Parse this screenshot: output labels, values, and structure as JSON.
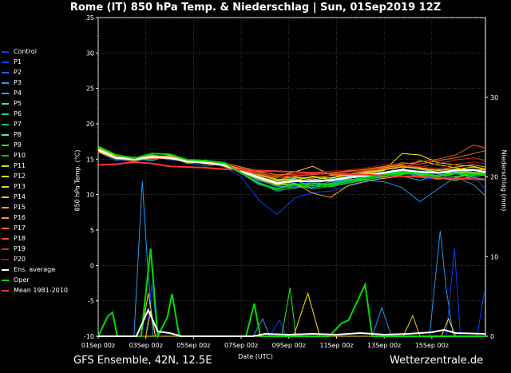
{
  "title": "Rome  (IT)  850 hPa Temp. & Niederschlag | Sun, 01Sep2019 12Z",
  "footer": {
    "left": "GFS Ensemble, 42N, 12.5E",
    "right": "Wetterzentrale.de"
  },
  "chart_data": {
    "type": "line",
    "xlabel": "Date (UTC)",
    "ylabel": "850 hPa Temp. (°C)",
    "ylabel_right": "Niederschlag (mm)",
    "ylim": [
      -10,
      35
    ],
    "ylim_right": [
      0,
      40
    ],
    "x_ticks": [
      "01Sep 00z",
      "03Sep 00z",
      "05Sep 00z",
      "07Sep 00z",
      "09Sep 00z",
      "11Sep 00z",
      "13Sep 00z",
      "15Sep 00z"
    ],
    "x_tick_days": [
      0,
      2,
      4,
      6,
      8,
      10,
      12,
      14
    ],
    "x_range_days": [
      0,
      16.25
    ],
    "y_ticks_left": [
      -10,
      -5,
      0,
      5,
      10,
      15,
      20,
      25,
      30,
      35
    ],
    "y_ticks_right": [
      0,
      10,
      20,
      30
    ],
    "grid": true,
    "temperature_series": [
      {
        "name": "Control",
        "color": "#2233cc",
        "values": [
          16.5,
          15.2,
          14.8,
          15.0,
          15.3,
          14.6,
          14.8,
          14.2,
          13.8,
          12.2,
          11.0,
          11.5,
          11.8,
          11.3,
          11.6,
          12.0,
          12.4,
          12.9,
          13.0,
          13.2,
          13.4,
          13.0,
          12.8
        ]
      },
      {
        "name": "P1",
        "color": "#0044ff",
        "values": [
          16.2,
          15.0,
          14.6,
          15.4,
          14.9,
          14.8,
          14.4,
          14.0,
          12.5,
          9.2,
          7.2,
          9.5,
          10.3,
          10.5,
          11.2,
          11.8,
          12.8,
          13.4,
          12.4,
          12.2,
          13.0,
          12.6,
          10.8
        ]
      },
      {
        "name": "P2",
        "color": "#1166ee",
        "values": [
          16.0,
          14.8,
          15.2,
          15.1,
          15.3,
          14.5,
          14.0,
          14.4,
          13.4,
          11.8,
          10.4,
          11.2,
          11.0,
          11.5,
          12.0,
          12.5,
          13.0,
          14.0,
          13.5,
          13.2,
          12.9,
          13.1,
          13.0
        ]
      },
      {
        "name": "P3",
        "color": "#2299ee",
        "values": [
          16.4,
          15.4,
          15.0,
          15.5,
          15.2,
          14.8,
          14.6,
          14.2,
          13.0,
          11.4,
          10.8,
          11.6,
          11.2,
          11.8,
          12.2,
          12.0,
          11.8,
          11.0,
          9.0,
          10.8,
          12.5,
          11.4,
          9.8
        ]
      },
      {
        "name": "P4",
        "color": "#22aadd",
        "values": [
          16.3,
          15.1,
          14.9,
          15.6,
          15.0,
          14.9,
          14.3,
          14.5,
          13.2,
          12.0,
          11.2,
          11.0,
          11.4,
          12.2,
          12.5,
          12.8,
          13.2,
          12.6,
          12.0,
          12.8,
          13.0,
          12.4,
          12.2
        ]
      },
      {
        "name": "P5",
        "color": "#33dddd",
        "values": [
          16.1,
          15.3,
          15.1,
          14.8,
          15.5,
          14.6,
          14.7,
          14.1,
          13.6,
          12.4,
          11.6,
          11.8,
          12.0,
          11.9,
          12.3,
          12.6,
          12.7,
          13.1,
          12.9,
          12.5,
          13.2,
          13.0,
          12.7
        ]
      },
      {
        "name": "P6",
        "color": "#22ccaa",
        "values": [
          16.6,
          15.2,
          14.7,
          15.3,
          15.4,
          14.7,
          14.5,
          14.6,
          13.5,
          12.6,
          11.8,
          12.0,
          11.2,
          11.6,
          12.1,
          12.4,
          12.9,
          13.3,
          13.1,
          12.7,
          12.6,
          12.9,
          13.4
        ]
      },
      {
        "name": "P7",
        "color": "#22bb88",
        "values": [
          16.2,
          15.0,
          15.0,
          15.2,
          15.1,
          14.9,
          14.4,
          14.3,
          13.4,
          12.2,
          11.5,
          11.3,
          10.8,
          11.2,
          11.7,
          12.2,
          12.6,
          13.0,
          12.8,
          12.3,
          12.1,
          12.5,
          12.8
        ]
      },
      {
        "name": "P8",
        "color": "#55ee99",
        "values": [
          16.5,
          15.5,
          15.3,
          15.0,
          15.6,
          14.6,
          14.9,
          14.0,
          13.7,
          12.8,
          12.0,
          12.3,
          12.5,
          12.1,
          12.6,
          12.9,
          13.1,
          13.5,
          13.3,
          13.0,
          13.1,
          13.4,
          13.6
        ]
      },
      {
        "name": "P9",
        "color": "#22ee22",
        "values": [
          16.0,
          15.4,
          15.0,
          15.6,
          15.3,
          14.4,
          14.7,
          14.4,
          13.3,
          12.3,
          11.3,
          11.4,
          11.0,
          11.4,
          11.9,
          12.2,
          12.5,
          12.8,
          13.3,
          12.4,
          12.0,
          12.7,
          13.1
        ]
      },
      {
        "name": "P10",
        "color": "#00cc00",
        "values": [
          16.3,
          15.1,
          14.8,
          15.2,
          15.2,
          14.5,
          14.6,
          14.1,
          13.1,
          11.6,
          10.6,
          10.9,
          11.3,
          11.1,
          11.6,
          12.1,
          12.7,
          12.9,
          13.0,
          13.6,
          13.5,
          12.8,
          13.0
        ]
      },
      {
        "name": "P11",
        "color": "#ccee00",
        "values": [
          16.4,
          15.3,
          15.2,
          15.4,
          15.0,
          14.8,
          14.5,
          14.3,
          13.9,
          13.2,
          12.5,
          12.4,
          12.1,
          12.4,
          12.9,
          13.3,
          13.8,
          14.2,
          13.6,
          13.2,
          13.0,
          13.2,
          12.9
        ]
      },
      {
        "name": "P12",
        "color": "#ffee00",
        "values": [
          16.1,
          15.0,
          15.1,
          15.0,
          15.4,
          14.7,
          14.8,
          14.2,
          13.8,
          12.9,
          12.2,
          12.0,
          12.6,
          12.3,
          12.8,
          13.0,
          13.4,
          15.8,
          15.6,
          14.5,
          14.2,
          14.0,
          13.6
        ]
      },
      {
        "name": "P13",
        "color": "#eedd22",
        "values": [
          16.2,
          15.2,
          14.9,
          15.3,
          15.1,
          14.6,
          14.6,
          14.4,
          13.6,
          13.0,
          12.6,
          13.2,
          14.0,
          12.8,
          12.7,
          13.1,
          13.5,
          13.9,
          13.7,
          13.4,
          13.6,
          13.9,
          13.5
        ]
      },
      {
        "name": "P14",
        "color": "#ffcc00",
        "values": [
          16.6,
          15.4,
          15.0,
          15.5,
          15.3,
          14.8,
          14.3,
          14.2,
          13.5,
          12.5,
          11.9,
          12.2,
          11.8,
          12.0,
          12.4,
          12.8,
          13.0,
          13.6,
          14.8,
          14.2,
          13.8,
          13.4,
          13.2
        ]
      },
      {
        "name": "P15",
        "color": "#ffaa00",
        "values": [
          16.0,
          15.1,
          15.2,
          15.1,
          15.2,
          14.5,
          14.7,
          14.0,
          13.2,
          12.1,
          11.4,
          11.6,
          10.2,
          9.6,
          11.3,
          11.9,
          12.3,
          12.6,
          12.7,
          12.2,
          12.4,
          12.9,
          13.1
        ]
      },
      {
        "name": "P16",
        "color": "#ff9922",
        "values": [
          16.3,
          15.3,
          15.1,
          15.4,
          15.5,
          14.9,
          14.6,
          14.3,
          13.7,
          12.7,
          12.1,
          12.5,
          12.3,
          12.7,
          12.9,
          13.2,
          13.6,
          14.0,
          13.8,
          13.5,
          13.9,
          14.2,
          13.9
        ]
      },
      {
        "name": "P17",
        "color": "#ee7722",
        "values": [
          16.5,
          15.0,
          14.8,
          15.2,
          15.0,
          14.7,
          14.5,
          14.5,
          13.9,
          13.3,
          12.8,
          12.9,
          13.0,
          13.1,
          13.3,
          13.6,
          14.0,
          14.5,
          14.3,
          14.8,
          15.2,
          15.8,
          16.2
        ]
      },
      {
        "name": "P18",
        "color": "#ee5522",
        "values": [
          16.2,
          15.2,
          15.0,
          15.3,
          15.4,
          14.6,
          14.4,
          14.1,
          13.6,
          13.0,
          12.7,
          12.6,
          12.8,
          13.0,
          13.4,
          13.5,
          13.9,
          14.3,
          14.6,
          15.0,
          15.6,
          17.0,
          16.6
        ]
      },
      {
        "name": "P19",
        "color": "#cc3322",
        "values": [
          16.1,
          15.4,
          15.3,
          15.0,
          15.2,
          14.8,
          14.7,
          14.2,
          13.4,
          12.9,
          12.4,
          12.7,
          12.9,
          12.9,
          13.2,
          13.4,
          13.7,
          14.1,
          13.9,
          14.4,
          14.9,
          15.2,
          14.8
        ]
      },
      {
        "name": "P20",
        "color": "#aa1111",
        "values": [
          16.4,
          15.1,
          14.9,
          15.4,
          15.1,
          14.9,
          14.8,
          14.4,
          13.8,
          13.1,
          12.6,
          12.8,
          13.1,
          13.3,
          13.5,
          13.8,
          14.2,
          14.4,
          14.0,
          13.7,
          14.3,
          14.6,
          14.4
        ]
      },
      {
        "name": "Ens. average",
        "color": "#ffffff",
        "width": 2.5,
        "values": [
          16.3,
          15.2,
          15.0,
          15.3,
          15.2,
          14.7,
          14.5,
          14.2,
          13.3,
          12.4,
          11.6,
          11.9,
          11.9,
          12.0,
          12.4,
          12.7,
          13.1,
          13.5,
          13.2,
          13.1,
          13.4,
          13.5,
          13.2
        ]
      },
      {
        "name": "Oper",
        "color": "#00dd00",
        "width": 2,
        "values": [
          16.8,
          15.6,
          15.1,
          15.8,
          15.7,
          14.9,
          14.8,
          14.5,
          13.1,
          11.6,
          10.8,
          11.4,
          11.6,
          11.4,
          11.9,
          12.4,
          12.8,
          13.2,
          13.0,
          12.6,
          13.0,
          12.8,
          12.9
        ]
      },
      {
        "name": "Mean 1981-2010",
        "color": "#ff3333",
        "width": 2,
        "values": [
          14.2,
          14.3,
          14.6,
          14.4,
          14.0,
          13.9,
          13.8,
          13.6,
          13.5,
          13.4,
          13.3,
          13.2,
          13.1,
          13.0,
          12.9,
          12.8,
          12.7,
          12.6,
          12.5,
          12.4,
          12.3,
          12.2,
          12.1
        ]
      }
    ],
    "temperature_x_days": [
      0,
      0.75,
      1.5,
      2.25,
      3,
      3.75,
      4.5,
      5.25,
      6,
      6.75,
      7.5,
      8.25,
      9,
      9.75,
      10.5,
      11.25,
      12,
      12.75,
      13.5,
      14.25,
      15,
      15.75,
      16.25
    ],
    "precipitation_series": [
      {
        "name": "P3",
        "color": "#2299ee",
        "points": [
          [
            0,
            0
          ],
          [
            1.5,
            0
          ],
          [
            1.85,
            19.5
          ],
          [
            2.05,
            10
          ],
          [
            2.3,
            0
          ],
          [
            3.5,
            0
          ],
          [
            6.5,
            0
          ],
          [
            6.9,
            2.2
          ],
          [
            7.2,
            0
          ],
          [
            11.5,
            0
          ],
          [
            11.9,
            3.6
          ],
          [
            12.3,
            0
          ],
          [
            13.9,
            0
          ],
          [
            14.35,
            13.2
          ],
          [
            14.6,
            6
          ],
          [
            14.9,
            0
          ],
          [
            16.25,
            0
          ]
        ]
      },
      {
        "name": "P1",
        "color": "#0044ff",
        "points": [
          [
            0,
            0
          ],
          [
            2.0,
            0
          ],
          [
            2.25,
            6.5
          ],
          [
            2.5,
            0
          ],
          [
            7.2,
            0
          ],
          [
            7.6,
            2.0
          ],
          [
            7.9,
            0
          ],
          [
            14.6,
            0
          ],
          [
            14.95,
            11.0
          ],
          [
            15.2,
            0
          ],
          [
            15.9,
            0
          ],
          [
            16.2,
            5.5
          ]
        ]
      },
      {
        "name": "P9",
        "color": "#22ee22",
        "points": [
          [
            0,
            0
          ],
          [
            7.7,
            0
          ],
          [
            8.05,
            6.1
          ],
          [
            8.3,
            0
          ],
          [
            16.25,
            0
          ]
        ]
      },
      {
        "name": "P12",
        "color": "#ffee00",
        "points": [
          [
            0,
            0
          ],
          [
            8.2,
            0
          ],
          [
            8.8,
            5.4
          ],
          [
            9.3,
            0
          ],
          [
            16.25,
            0
          ]
        ]
      },
      {
        "name": "P14",
        "color": "#ffcc00",
        "points": [
          [
            0,
            0
          ],
          [
            2.0,
            0
          ],
          [
            2.2,
            3.2
          ],
          [
            2.4,
            0
          ],
          [
            12.8,
            0
          ],
          [
            13.2,
            2.6
          ],
          [
            13.5,
            0
          ],
          [
            16.25,
            0
          ]
        ]
      },
      {
        "name": "P13",
        "color": "#eedd22",
        "points": [
          [
            0,
            0
          ],
          [
            1.8,
            0
          ],
          [
            2.1,
            5.4
          ],
          [
            2.4,
            0
          ],
          [
            14.4,
            0
          ],
          [
            14.7,
            2.2
          ],
          [
            15.0,
            0
          ],
          [
            16.25,
            0
          ]
        ]
      },
      {
        "name": "Oper",
        "color": "#00dd00",
        "width": 2,
        "points": [
          [
            0,
            0
          ],
          [
            0.4,
            2.5
          ],
          [
            0.6,
            3.0
          ],
          [
            0.8,
            0
          ],
          [
            1.8,
            0
          ],
          [
            2.2,
            11.0
          ],
          [
            2.5,
            0
          ],
          [
            2.9,
            2.4
          ],
          [
            3.1,
            5.3
          ],
          [
            3.4,
            0
          ],
          [
            6.2,
            0
          ],
          [
            6.55,
            4.1
          ],
          [
            6.8,
            0
          ],
          [
            9.7,
            0
          ],
          [
            10.2,
            1.6
          ],
          [
            10.5,
            2.0
          ],
          [
            11.2,
            6.5
          ],
          [
            11.5,
            0
          ],
          [
            16.25,
            0
          ]
        ]
      },
      {
        "name": "Ens. average",
        "color": "#ffffff",
        "width": 2,
        "points": [
          [
            0,
            0
          ],
          [
            1.6,
            0
          ],
          [
            2.1,
            3.3
          ],
          [
            2.5,
            0.6
          ],
          [
            3.0,
            0.4
          ],
          [
            3.5,
            0
          ],
          [
            6.5,
            0
          ],
          [
            7.0,
            0.3
          ],
          [
            8.0,
            0.2
          ],
          [
            9.0,
            0.3
          ],
          [
            10.0,
            0.2
          ],
          [
            11.0,
            0.4
          ],
          [
            12.0,
            0.2
          ],
          [
            13.0,
            0.3
          ],
          [
            14.0,
            0.5
          ],
          [
            14.5,
            0.8
          ],
          [
            15.0,
            0.4
          ],
          [
            16.25,
            0.3
          ]
        ]
      }
    ]
  }
}
